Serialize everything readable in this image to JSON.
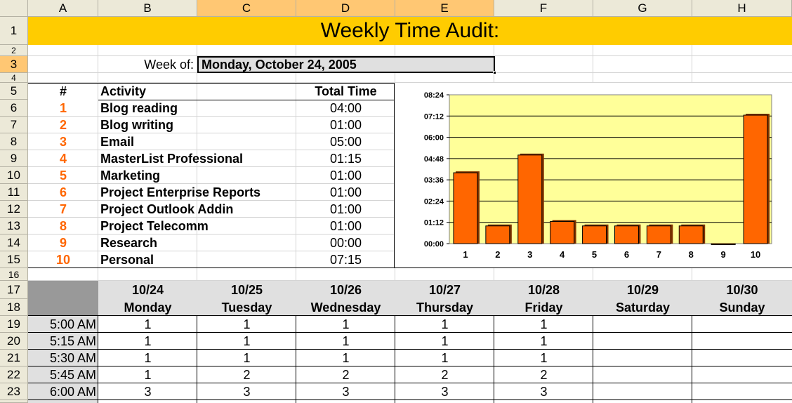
{
  "columns": [
    "A",
    "B",
    "C",
    "D",
    "E",
    "F",
    "G",
    "H"
  ],
  "rows": [
    "1",
    "2",
    "3",
    "4",
    "5",
    "6",
    "7",
    "8",
    "9",
    "10",
    "11",
    "12",
    "13",
    "14",
    "15",
    "16",
    "17",
    "18",
    "19",
    "20",
    "21",
    "22",
    "23"
  ],
  "title": "Weekly Time Audit:",
  "week": {
    "label": "Week of:",
    "value": "Monday, October 24, 2005"
  },
  "activity_table": {
    "headers": {
      "num": "#",
      "activity": "Activity",
      "total": "Total Time"
    },
    "items": [
      {
        "num": "1",
        "activity": "Blog reading",
        "total": "04:00"
      },
      {
        "num": "2",
        "activity": "Blog writing",
        "total": "01:00"
      },
      {
        "num": "3",
        "activity": "Email",
        "total": "05:00"
      },
      {
        "num": "4",
        "activity": "MasterList Professional",
        "total": "01:15"
      },
      {
        "num": "5",
        "activity": "Marketing",
        "total": "01:00"
      },
      {
        "num": "6",
        "activity": "Project Enterprise Reports",
        "total": "01:00"
      },
      {
        "num": "7",
        "activity": "Project Outlook Addin",
        "total": "01:00"
      },
      {
        "num": "8",
        "activity": "Project Telecomm",
        "total": "01:00"
      },
      {
        "num": "9",
        "activity": "Research",
        "total": "00:00"
      },
      {
        "num": "10",
        "activity": "Personal",
        "total": "07:15"
      }
    ]
  },
  "chart_data": {
    "type": "bar",
    "categories": [
      "1",
      "2",
      "3",
      "4",
      "5",
      "6",
      "7",
      "8",
      "9",
      "10"
    ],
    "values": [
      4.0,
      1.0,
      5.0,
      1.25,
      1.0,
      1.0,
      1.0,
      1.0,
      0.0,
      7.25
    ],
    "ylim": [
      0,
      8.4
    ],
    "yticks": [
      {
        "v": 0,
        "label": "00:00"
      },
      {
        "v": 1.2,
        "label": "01:12"
      },
      {
        "v": 2.4,
        "label": "02:24"
      },
      {
        "v": 3.6,
        "label": "03:36"
      },
      {
        "v": 4.8,
        "label": "04:48"
      },
      {
        "v": 6.0,
        "label": "06:00"
      },
      {
        "v": 7.2,
        "label": "07:12"
      },
      {
        "v": 8.4,
        "label": "08:24"
      }
    ],
    "grid": true,
    "bar_color": "#ff6600",
    "plot_bg": "#ffff99"
  },
  "schedule": {
    "days": [
      {
        "date": "10/24",
        "name": "Monday"
      },
      {
        "date": "10/25",
        "name": "Tuesday"
      },
      {
        "date": "10/26",
        "name": "Wednesday"
      },
      {
        "date": "10/27",
        "name": "Thursday"
      },
      {
        "date": "10/28",
        "name": "Friday"
      },
      {
        "date": "10/29",
        "name": "Saturday"
      },
      {
        "date": "10/30",
        "name": "Sunday"
      }
    ],
    "rows": [
      {
        "time": "5:00 AM",
        "values": [
          "1",
          "1",
          "1",
          "1",
          "1",
          "",
          ""
        ]
      },
      {
        "time": "5:15 AM",
        "values": [
          "1",
          "1",
          "1",
          "1",
          "1",
          "",
          ""
        ]
      },
      {
        "time": "5:30 AM",
        "values": [
          "1",
          "1",
          "1",
          "1",
          "1",
          "",
          ""
        ]
      },
      {
        "time": "5:45 AM",
        "values": [
          "1",
          "2",
          "2",
          "2",
          "2",
          "",
          ""
        ]
      },
      {
        "time": "6:00 AM",
        "values": [
          "3",
          "3",
          "3",
          "3",
          "3",
          "",
          ""
        ]
      }
    ]
  },
  "colors": {
    "title_bar": "#ffcc00",
    "accent": "#ff6600",
    "header_bg": "#ece9d8",
    "header_selected": "#ffc773"
  }
}
